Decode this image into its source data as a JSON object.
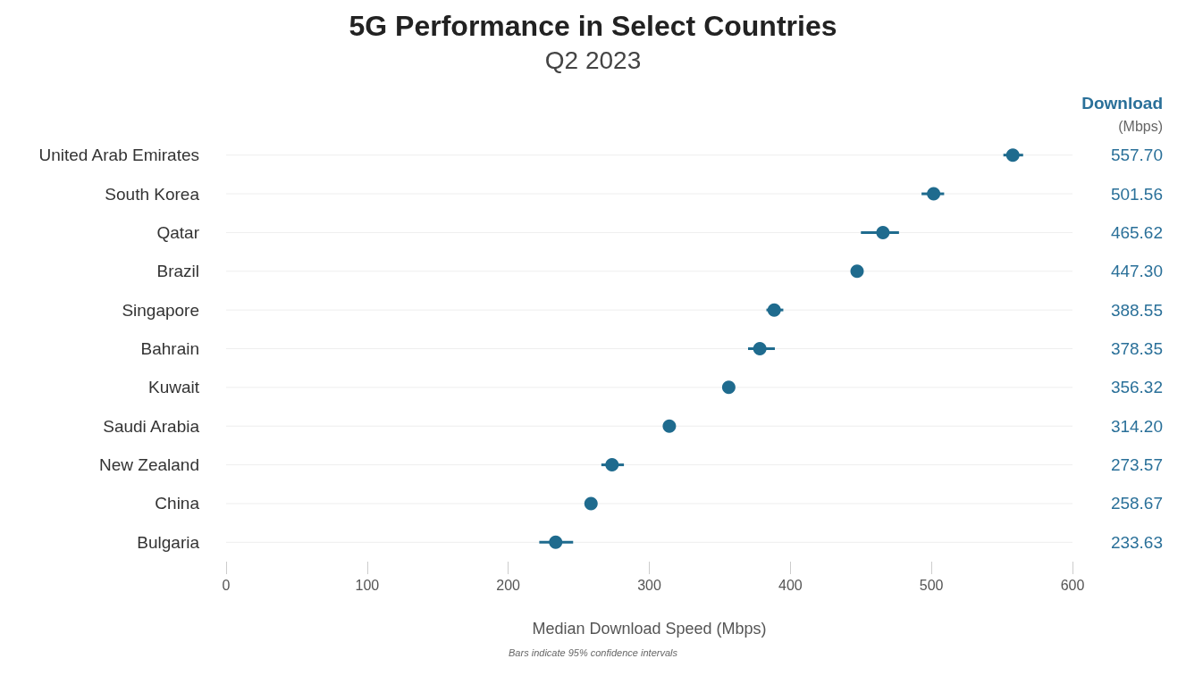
{
  "chart_data": {
    "type": "scatter",
    "title": "5G Performance in Select Countries",
    "subtitle": "Q2 2023",
    "xlabel": "Median Download Speed (Mbps)",
    "categories": [
      "United Arab Emirates",
      "South Korea",
      "Qatar",
      "Brazil",
      "Singapore",
      "Bahrain",
      "Kuwait",
      "Saudi Arabia",
      "New Zealand",
      "China",
      "Bulgaria"
    ],
    "series": [
      {
        "color": "#1f6b8e",
        "values": [
          557.7,
          501.56,
          465.62,
          447.3,
          388.55,
          378.35,
          356.32,
          314.2,
          273.57,
          258.67,
          233.63
        ],
        "value_labels": [
          "557.70",
          "501.56",
          "465.62",
          "447.30",
          "388.55",
          "378.35",
          "356.32",
          "314.20",
          "273.57",
          "258.67",
          "233.63"
        ],
        "errors": [
          [
            551,
            565
          ],
          [
            493,
            509
          ],
          [
            450,
            477
          ],
          null,
          [
            383,
            395
          ],
          [
            370,
            389
          ],
          null,
          null,
          [
            266,
            282
          ],
          null,
          [
            222,
            246
          ]
        ]
      }
    ],
    "orientation": "horizontal",
    "xlim": [
      0,
      600
    ],
    "xticks": [
      0,
      100,
      200,
      300,
      400,
      500,
      600
    ],
    "grid": "y",
    "marker": "circle",
    "annotations": [
      "Download",
      "(Mbps)",
      "Bars indicate 95% confidence intervals"
    ]
  }
}
